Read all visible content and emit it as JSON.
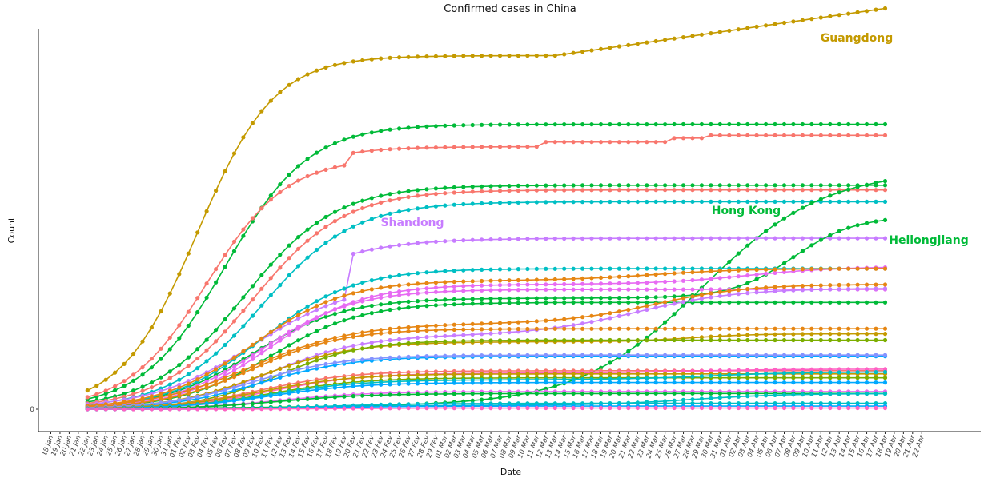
{
  "chart_data": {
    "type": "line",
    "title": "Confirmed cases in China",
    "xlabel": "Date",
    "ylabel": "Count",
    "y_tick_labels": [
      "0"
    ],
    "x_tick_labels": [
      "18 Jan",
      "19 Jan",
      "20 Jan",
      "21 Jan",
      "22 Jan",
      "23 Jan",
      "24 Jan",
      "25 Jan",
      "26 Jan",
      "27 Jan",
      "28 Jan",
      "29 Jan",
      "30 Jan",
      "31 Jan",
      "01 Fev",
      "02 Fev",
      "03 Fev",
      "04 Fev",
      "05 Fev",
      "06 Fev",
      "07 Fev",
      "08 Fev",
      "09 Fev",
      "10 Fev",
      "11 Fev",
      "12 Fev",
      "13 Fev",
      "14 Fev",
      "15 Fev",
      "16 Fev",
      "17 Fev",
      "18 Fev",
      "19 Fev",
      "20 Fev",
      "21 Fev",
      "22 Fev",
      "23 Fev",
      "24 Fev",
      "25 Fev",
      "26 Fev",
      "27 Fev",
      "28 Fev",
      "29 Fev",
      "01 Mar",
      "02 Mar",
      "03 Mar",
      "04 Mar",
      "05 Mar",
      "06 Mar",
      "07 Mar",
      "08 Mar",
      "09 Mar",
      "10 Mar",
      "11 Mar",
      "12 Mar",
      "13 Mar",
      "14 Mar",
      "15 Mar",
      "16 Mar",
      "17 Mar",
      "18 Mar",
      "19 Mar",
      "20 Mar",
      "21 Mar",
      "22 Mar",
      "23 Mar",
      "24 Mar",
      "25 Mar",
      "26 Mar",
      "27 Mar",
      "28 Mar",
      "29 Mar",
      "30 Mar",
      "31 Mar",
      "01 Abr",
      "02 Abr",
      "03 Abr",
      "04 Abr",
      "05 Abr",
      "06 Abr",
      "07 Abr",
      "08 Abr",
      "09 Abr",
      "10 Abr",
      "11 Abr",
      "12 Abr",
      "13 Abr",
      "14 Abr",
      "15 Abr",
      "16 Abr",
      "17 Abr",
      "18 Abr",
      "19 Abr",
      "20 Abr",
      "21 Abr",
      "22 Abr"
    ],
    "x_start_day": 4,
    "x_end_day": 91,
    "ylim": [
      0,
      960
    ],
    "grid": false,
    "legend": "none",
    "series": [
      {
        "name": "Guangdong",
        "color": "#C49A00",
        "label_pos": [
          1070,
          52
        ],
        "kind": "s",
        "final": 900,
        "k": 0.24,
        "t0": 16,
        "late": {
          "start": 55,
          "end": 91,
          "add": 120
        }
      },
      {
        "color": "#00BA38",
        "kind": "s",
        "final": 725,
        "k": 0.22,
        "t0": 19
      },
      {
        "color": "#F8766D",
        "kind": "s",
        "final": 640,
        "k": 0.23,
        "t0": 17,
        "steps": [
          {
            "day": 33,
            "add": 28
          },
          {
            "day": 54,
            "add": 12
          },
          {
            "day": 68,
            "add": 10
          },
          {
            "day": 72,
            "add": 7
          }
        ]
      },
      {
        "color": "#00BA38",
        "kind": "s",
        "final": 570,
        "k": 0.2,
        "t0": 21
      },
      {
        "color": "#F8766D",
        "kind": "s",
        "final": 558,
        "k": 0.2,
        "t0": 22
      },
      {
        "color": "#00BFC4",
        "kind": "s",
        "final": 528,
        "k": 0.2,
        "t0": 23
      },
      {
        "name": "Hong Kong",
        "color": "#00BA38",
        "label_pos": [
          932,
          268
        ],
        "kind": "s",
        "final": 9,
        "k": 0.1,
        "t0": 24,
        "late": {
          "start": 55,
          "end": 84,
          "add": 600,
          "sigma_k": 0.15,
          "sigma_t0": 71
        }
      },
      {
        "name": "Shandong",
        "color": "#C77CFF",
        "label_pos": [
          515,
          283
        ],
        "kind": "s",
        "final": 325,
        "k": 0.18,
        "t0": 22,
        "steps": [
          {
            "day": 33,
            "add": 110
          }
        ]
      },
      {
        "name": "Heilongjiang",
        "color": "#00BA38",
        "label_pos": [
          1160,
          305
        ],
        "kind": "s",
        "final": 283,
        "k": 0.2,
        "t0": 22,
        "late": {
          "start": 70,
          "end": 91,
          "add": 208,
          "sigma_k": 0.3,
          "sigma_t0": 81
        }
      },
      {
        "color": "#00BFC4",
        "kind": "s",
        "final": 358,
        "k": 0.2,
        "t0": 23
      },
      {
        "color": "#E76BF3",
        "kind": "s",
        "final": 318,
        "k": 0.2,
        "t0": 24,
        "late": {
          "start": 60,
          "end": 91,
          "add": 45,
          "sigma_k": 0.2,
          "sigma_t0": 76
        }
      },
      {
        "color": "#E68613",
        "kind": "s",
        "final": 328,
        "k": 0.2,
        "t0": 22,
        "late": {
          "start": 60,
          "end": 91,
          "add": 30,
          "sigma_k": 0.2,
          "sigma_t0": 66
        }
      },
      {
        "color": "#E76BF3",
        "kind": "s",
        "final": 305,
        "k": 0.2,
        "t0": 23
      },
      {
        "color": "#00BA38",
        "kind": "s",
        "final": 272,
        "k": 0.2,
        "t0": 24
      },
      {
        "color": "#E68613",
        "kind": "s",
        "final": 218,
        "k": 0.18,
        "t0": 22,
        "late": {
          "start": 55,
          "end": 91,
          "add": 100,
          "sigma_k": 0.2,
          "sigma_t0": 66
        }
      },
      {
        "color": "#C77CFF",
        "kind": "s",
        "final": 188,
        "k": 0.2,
        "t0": 24,
        "late": {
          "start": 55,
          "end": 91,
          "add": 120,
          "sigma_k": 0.18,
          "sigma_t0": 64
        }
      },
      {
        "color": "#C49A00",
        "kind": "s",
        "final": 172,
        "k": 0.2,
        "t0": 23,
        "late": {
          "start": 55,
          "end": 91,
          "add": 20,
          "sigma_k": 0.3,
          "sigma_t0": 70
        }
      },
      {
        "color": "#E68613",
        "kind": "s",
        "final": 205,
        "k": 0.2,
        "t0": 22
      },
      {
        "color": "#7CAE00",
        "kind": "s",
        "final": 176,
        "k": 0.22,
        "t0": 25
      },
      {
        "color": "#00A9FF",
        "kind": "s",
        "final": 135,
        "k": 0.2,
        "t0": 23
      },
      {
        "color": "#8494FF",
        "kind": "s",
        "final": 138,
        "k": 0.2,
        "t0": 22
      },
      {
        "color": "#F8766D",
        "kind": "s",
        "final": 98,
        "k": 0.2,
        "t0": 23
      },
      {
        "color": "#FF61C3",
        "kind": "s",
        "final": 92,
        "k": 0.2,
        "t0": 24,
        "late": {
          "start": 55,
          "end": 91,
          "add": 10,
          "sigma_k": 0.2,
          "sigma_t0": 70
        }
      },
      {
        "color": "#C49A00",
        "kind": "s",
        "final": 90,
        "k": 0.2,
        "t0": 23
      },
      {
        "color": "#7CAE00",
        "kind": "s",
        "final": 80,
        "k": 0.2,
        "t0": 24
      },
      {
        "color": "#00BFC4",
        "kind": "s",
        "final": 75,
        "k": 0.2,
        "t0": 24,
        "late": {
          "start": 55,
          "end": 91,
          "add": 20,
          "sigma_k": 0.2,
          "sigma_t0": 72
        }
      },
      {
        "color": "#00A9FF",
        "kind": "s",
        "final": 68,
        "k": 0.2,
        "t0": 24
      },
      {
        "color": "#E76BF3",
        "kind": "s",
        "final": 45,
        "k": 0.2,
        "t0": 25
      },
      {
        "color": "#00BA38",
        "kind": "s",
        "final": 40,
        "k": 0.2,
        "t0": 25
      },
      {
        "color": "#00BFC4",
        "kind": "s",
        "final": 10,
        "k": 0.2,
        "t0": 30,
        "late": {
          "start": 55,
          "end": 91,
          "add": 30,
          "sigma_k": 0.2,
          "sigma_t0": 70
        }
      },
      {
        "color": "#00BFC4",
        "kind": "s",
        "final": 15,
        "k": 0.2,
        "t0": 30
      },
      {
        "color": "#00A9FF",
        "kind": "s",
        "final": 8,
        "k": 0.2,
        "t0": 30
      },
      {
        "color": "#FF61C3",
        "kind": "s",
        "final": 3,
        "k": 0.2,
        "t0": 30
      }
    ]
  }
}
